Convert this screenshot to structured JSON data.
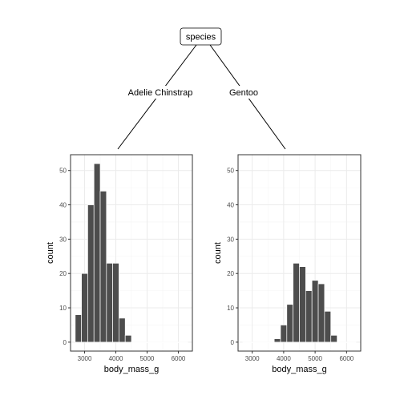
{
  "tree": {
    "root_label": "species",
    "branches": [
      {
        "label": "Adelie Chinstrap"
      },
      {
        "label": "Gentoo"
      }
    ]
  },
  "colors": {
    "bar": "#4d4d4d",
    "panel_border": "#333333",
    "grid_major": "#ebebeb",
    "grid_minor": "#f5f5f5"
  },
  "chart_data": [
    {
      "type": "bar",
      "subtype": "histogram",
      "title": "",
      "xlabel": "body_mass_g",
      "ylabel": "count",
      "xlim": [
        2550,
        6450
      ],
      "ylim": [
        -2.6,
        54.6
      ],
      "x_ticks": [
        3000,
        4000,
        5000,
        6000
      ],
      "y_ticks": [
        0,
        10,
        20,
        30,
        40,
        50
      ],
      "grid": true,
      "bin_width": 200,
      "bin_centers": [
        2800,
        3000,
        3200,
        3400,
        3600,
        3800,
        4000,
        4200,
        4400,
        4600,
        4800,
        5000,
        5200,
        5400,
        5600,
        5800,
        6000,
        6200
      ],
      "values": [
        8,
        20,
        40,
        52,
        44,
        23,
        23,
        7,
        2,
        0,
        0,
        0,
        0,
        0,
        0,
        0,
        0,
        0
      ]
    },
    {
      "type": "bar",
      "subtype": "histogram",
      "title": "",
      "xlabel": "body_mass_g",
      "ylabel": "count",
      "xlim": [
        2550,
        6450
      ],
      "ylim": [
        -2.6,
        54.6
      ],
      "x_ticks": [
        3000,
        4000,
        5000,
        6000
      ],
      "y_ticks": [
        0,
        10,
        20,
        30,
        40,
        50
      ],
      "grid": true,
      "bin_width": 200,
      "bin_centers": [
        2800,
        3000,
        3200,
        3400,
        3600,
        3800,
        4000,
        4200,
        4400,
        4600,
        4800,
        5000,
        5200,
        5400,
        5600,
        5800,
        6000,
        6200
      ],
      "values": [
        0,
        0,
        0,
        0,
        0,
        1,
        5,
        11,
        23,
        22,
        15,
        18,
        17,
        9,
        2,
        0,
        0,
        0
      ]
    }
  ]
}
